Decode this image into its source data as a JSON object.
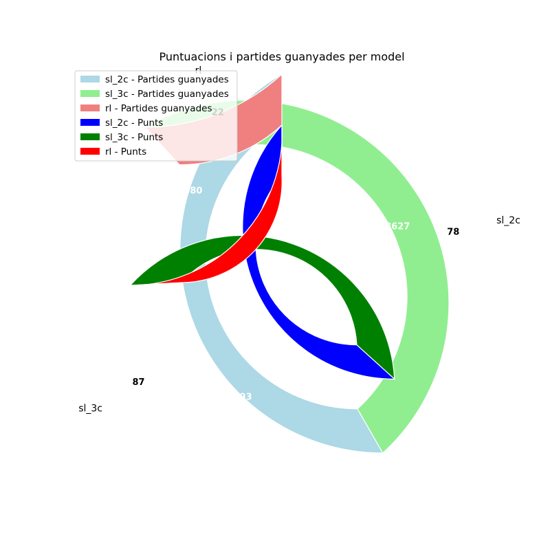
{
  "chart_data": {
    "type": "pie",
    "title": "Puntuacions i partides guanyades per model",
    "categories": [
      "sl_2c",
      "sl_3c",
      "rl"
    ],
    "series": [
      {
        "name": "Partides guanyades",
        "ring": "outer",
        "values": [
          78,
          87,
          22
        ],
        "colors": [
          "#add8e6",
          "#90ee90",
          "#f08080"
        ]
      },
      {
        "name": "Punts",
        "ring": "inner",
        "values": [
          8627,
          8793,
          6080
        ],
        "colors": [
          "#0000ff",
          "#008000",
          "#ff0000"
        ]
      }
    ],
    "legend": {
      "placement": "upper-left",
      "entries": [
        {
          "label": "sl_2c - Partides guanyades",
          "color": "#add8e6"
        },
        {
          "label": "sl_3c - Partides guanyades",
          "color": "#90ee90"
        },
        {
          "label": "rl - Partides guanyades",
          "color": "#f08080"
        },
        {
          "label": "sl_2c - Punts",
          "color": "#0000ff"
        },
        {
          "label": "sl_3c - Punts",
          "color": "#008000"
        },
        {
          "label": "rl - Punts",
          "color": "#ff0000"
        }
      ]
    },
    "start_angle_deg": 90,
    "direction": "clockwise"
  }
}
